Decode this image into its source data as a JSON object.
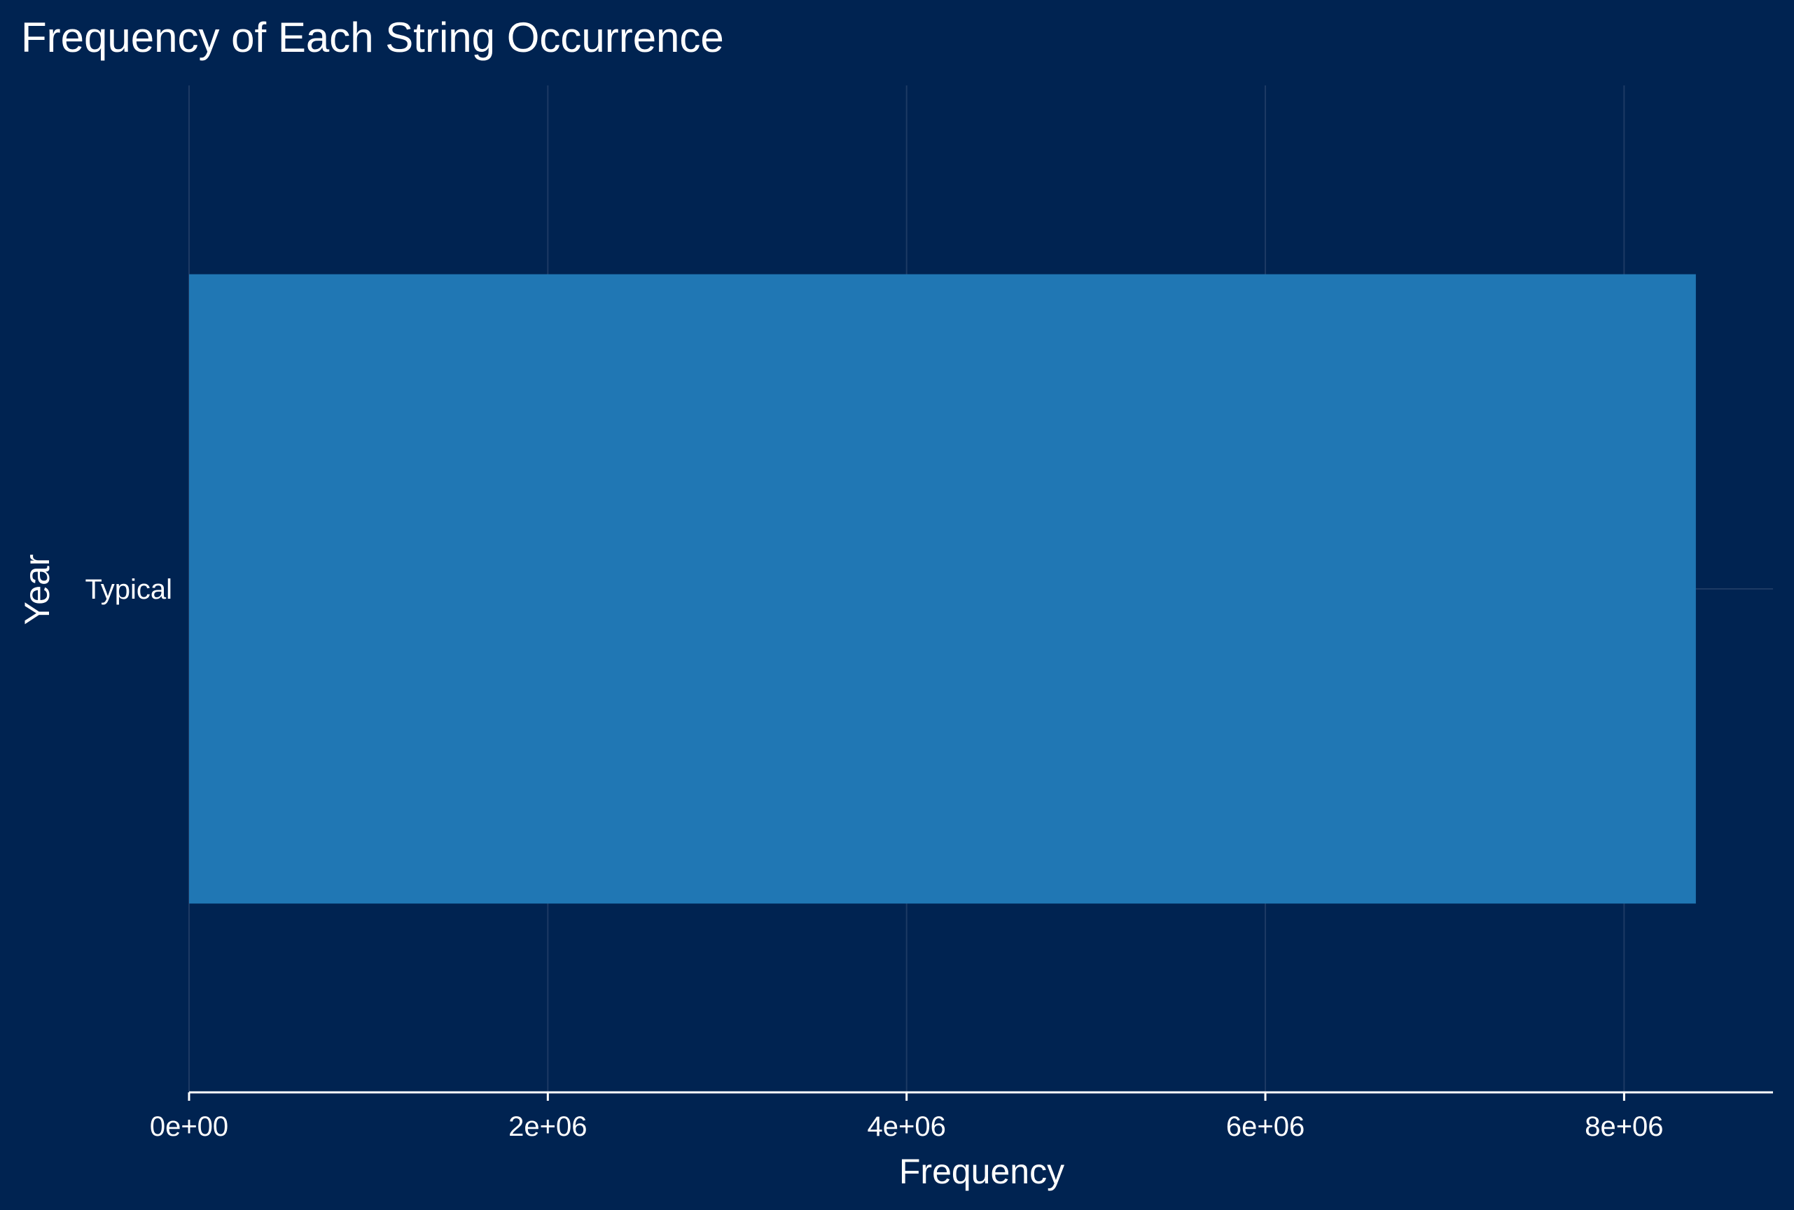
{
  "chart_data": {
    "type": "bar",
    "orientation": "horizontal",
    "title": "Frequency of Each String Occurrence",
    "xlabel": "Frequency",
    "ylabel": "Year",
    "categories": [
      "Typical"
    ],
    "values": [
      8400000
    ],
    "xlim": [
      0,
      8830000
    ],
    "xticks": [
      0,
      2000000,
      4000000,
      6000000,
      8000000
    ],
    "xtick_labels": [
      "0e+00",
      "2e+06",
      "4e+06",
      "6e+06",
      "8e+06"
    ],
    "grid": true,
    "legend": "none",
    "colors": {
      "background": "#002351",
      "bar": "#2077b4",
      "text": "#ffffff",
      "grid": "#1d3a64",
      "axis": "#ffffff"
    }
  }
}
